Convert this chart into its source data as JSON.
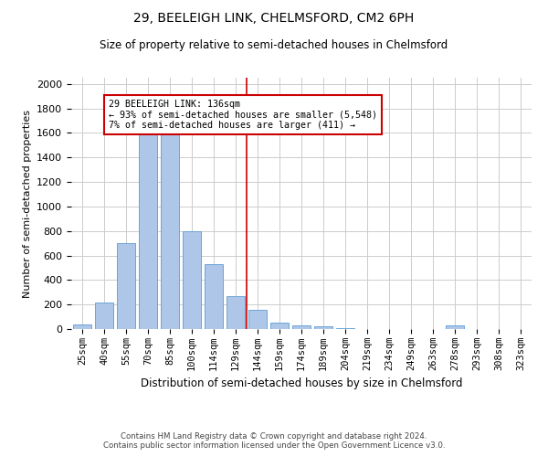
{
  "title1": "29, BEELEIGH LINK, CHELMSFORD, CM2 6PH",
  "title2": "Size of property relative to semi-detached houses in Chelmsford",
  "xlabel": "Distribution of semi-detached houses by size in Chelmsford",
  "ylabel": "Number of semi-detached properties",
  "footer1": "Contains HM Land Registry data © Crown copyright and database right 2024.",
  "footer2": "Contains public sector information licensed under the Open Government Licence v3.0.",
  "categories": [
    "25sqm",
    "40sqm",
    "55sqm",
    "70sqm",
    "85sqm",
    "100sqm",
    "114sqm",
    "129sqm",
    "144sqm",
    "159sqm",
    "174sqm",
    "189sqm",
    "204sqm",
    "219sqm",
    "234sqm",
    "249sqm",
    "263sqm",
    "278sqm",
    "293sqm",
    "308sqm",
    "323sqm"
  ],
  "bar_heights": [
    35,
    215,
    700,
    1600,
    1590,
    800,
    530,
    270,
    160,
    55,
    30,
    20,
    5,
    0,
    0,
    0,
    0,
    30,
    0,
    0,
    0
  ],
  "bar_color": "#aec6e8",
  "bar_edge_color": "#5b9bd5",
  "vline_color": "#cc0000",
  "annotation_text": "29 BEELEIGH LINK: 136sqm\n← 93% of semi-detached houses are smaller (5,548)\n7% of semi-detached houses are larger (411) →",
  "annotation_box_color": "#ffffff",
  "annotation_box_edge": "#cc0000",
  "ylim": [
    0,
    2050
  ],
  "yticks": [
    0,
    200,
    400,
    600,
    800,
    1000,
    1200,
    1400,
    1600,
    1800,
    2000
  ],
  "grid_color": "#cccccc",
  "background_color": "#ffffff",
  "vline_x": 7.5
}
